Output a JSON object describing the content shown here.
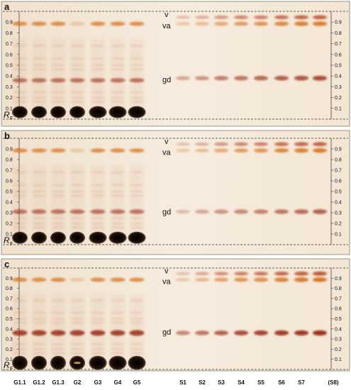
{
  "panels": [
    {
      "letter": "a",
      "rf_label": "R",
      "rf_sub": "F",
      "rf_ticks": [
        "0.9",
        "0.8",
        "0.7",
        "0.6",
        "0.5",
        "0.4",
        "0.3",
        "0.2",
        "0.1"
      ],
      "band_labels": {
        "v": "v",
        "va": "va",
        "gd": "gd"
      },
      "gd_intensity": [
        0.35,
        0.45,
        0.55,
        0.6,
        0.65,
        0.7,
        0.75,
        0.8
      ],
      "va_intensity": [
        0.3,
        0.4,
        0.55,
        0.65,
        0.7,
        0.8,
        0.85,
        0.9
      ]
    },
    {
      "letter": "b",
      "rf_label": "R",
      "rf_sub": "F",
      "rf_ticks": [
        "0.9",
        "0.8",
        "0.7",
        "0.6",
        "0.5",
        "0.4",
        "0.3",
        "0.2",
        "0.1"
      ],
      "band_labels": {
        "v": "v",
        "va": "va",
        "gd": "gd"
      },
      "gd_intensity": [
        0.25,
        0.35,
        0.45,
        0.5,
        0.55,
        0.6,
        0.65,
        0.7
      ],
      "va_intensity": [
        0.3,
        0.4,
        0.55,
        0.65,
        0.7,
        0.8,
        0.85,
        0.9
      ]
    },
    {
      "letter": "c",
      "rf_label": "R",
      "rf_sub": "F",
      "rf_ticks": [
        "0.9",
        "0.8",
        "0.7",
        "0.6",
        "0.5",
        "0.4",
        "0.3",
        "0.2",
        "0.1"
      ],
      "band_labels": {
        "v": "v",
        "va": "va",
        "gd": "gd"
      },
      "gd_intensity": [
        0.5,
        0.6,
        0.7,
        0.8,
        0.85,
        0.9,
        0.92,
        0.95
      ],
      "va_intensity": [
        0.3,
        0.45,
        0.6,
        0.7,
        0.75,
        0.85,
        0.9,
        0.95
      ]
    }
  ],
  "sample_lanes": [
    "G1.1",
    "G1.2",
    "G1.3",
    "G2",
    "G3",
    "G4",
    "G5"
  ],
  "standard_lanes": [
    "S1",
    "S2",
    "S3",
    "S4",
    "S5",
    "S6",
    "S7",
    "(S8)"
  ],
  "colors": {
    "plate": "#f4e9d9",
    "band_dark": "#1a0e06",
    "band_red": "#9a2a12",
    "band_orange": "#d8721e",
    "text": "#111111"
  }
}
